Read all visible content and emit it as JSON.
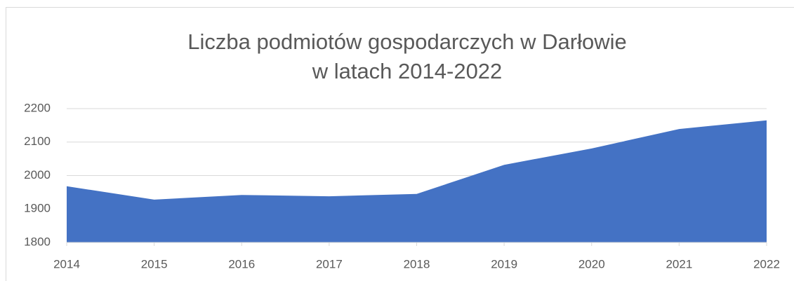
{
  "chart_data": {
    "type": "area",
    "title": [
      "Liczba podmiotów gospodarczych w Darłowie",
      "w latach 2014-2022"
    ],
    "categories": [
      "2014",
      "2015",
      "2016",
      "2017",
      "2018",
      "2019",
      "2020",
      "2021",
      "2022"
    ],
    "values": [
      1968,
      1928,
      1942,
      1938,
      1945,
      2032,
      2081,
      2139,
      2165
    ],
    "color": "#4472c4",
    "ylim": [
      1800,
      2200
    ],
    "yticks": [
      1800,
      1900,
      2000,
      2100,
      2200
    ],
    "grid": true
  }
}
